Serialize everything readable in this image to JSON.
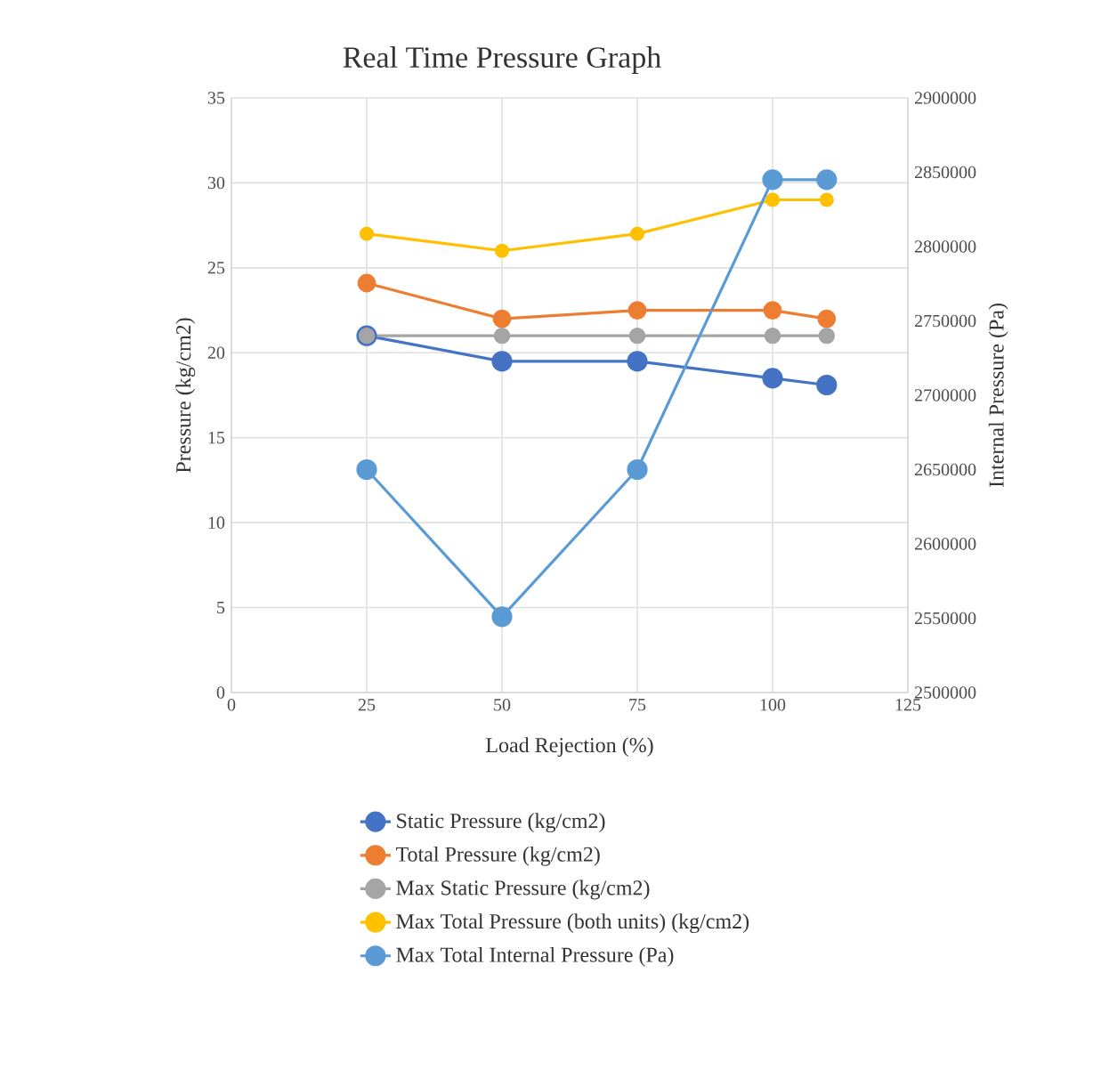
{
  "chart_data": {
    "type": "line",
    "title": "Real Time Pressure Graph",
    "xlabel": "Load Rejection (%)",
    "ylabel": "Pressure (kg/cm2)",
    "y2label": "Internal Pressure (Pa)",
    "x": [
      25,
      50,
      75,
      100,
      110
    ],
    "series": [
      {
        "name": "Static Pressure (kg/cm2)",
        "color": "#4472c4",
        "values": [
          21,
          19.5,
          19.5,
          18.5,
          18.1
        ]
      },
      {
        "name": "Total Pressure (kg/cm2)",
        "color": "#ed7d31",
        "values": [
          24.1,
          22,
          22.5,
          22.5,
          22
        ]
      },
      {
        "name": "Max Static Pressure (kg/cm2)",
        "color": "#a5a5a5",
        "values": [
          21,
          21,
          21,
          21,
          21
        ]
      },
      {
        "name": "Max Total Pressure (both units) (kg/cm2)",
        "color": "#ffc000",
        "values": [
          27,
          26,
          27,
          29,
          29
        ]
      },
      {
        "name": "Max Total Internal Pressure (Pa)",
        "color": "#5b9bd5",
        "axis": "y2",
        "values": [
          2650000,
          2551000,
          2650000,
          2845000,
          2845000
        ]
      }
    ],
    "xlim": [
      0,
      125
    ],
    "xticks": [
      0,
      25,
      50,
      75,
      100,
      125
    ],
    "ylim": [
      0,
      35
    ],
    "yticks": [
      0,
      5,
      10,
      15,
      20,
      25,
      30,
      35
    ],
    "y2lim": [
      2500000,
      2900000
    ],
    "y2ticks": [
      2500000,
      2550000,
      2600000,
      2650000,
      2700000,
      2750000,
      2800000,
      2850000,
      2900000
    ],
    "grid": true,
    "legend": "bottom",
    "marker": "circle",
    "line_style": "solid"
  }
}
